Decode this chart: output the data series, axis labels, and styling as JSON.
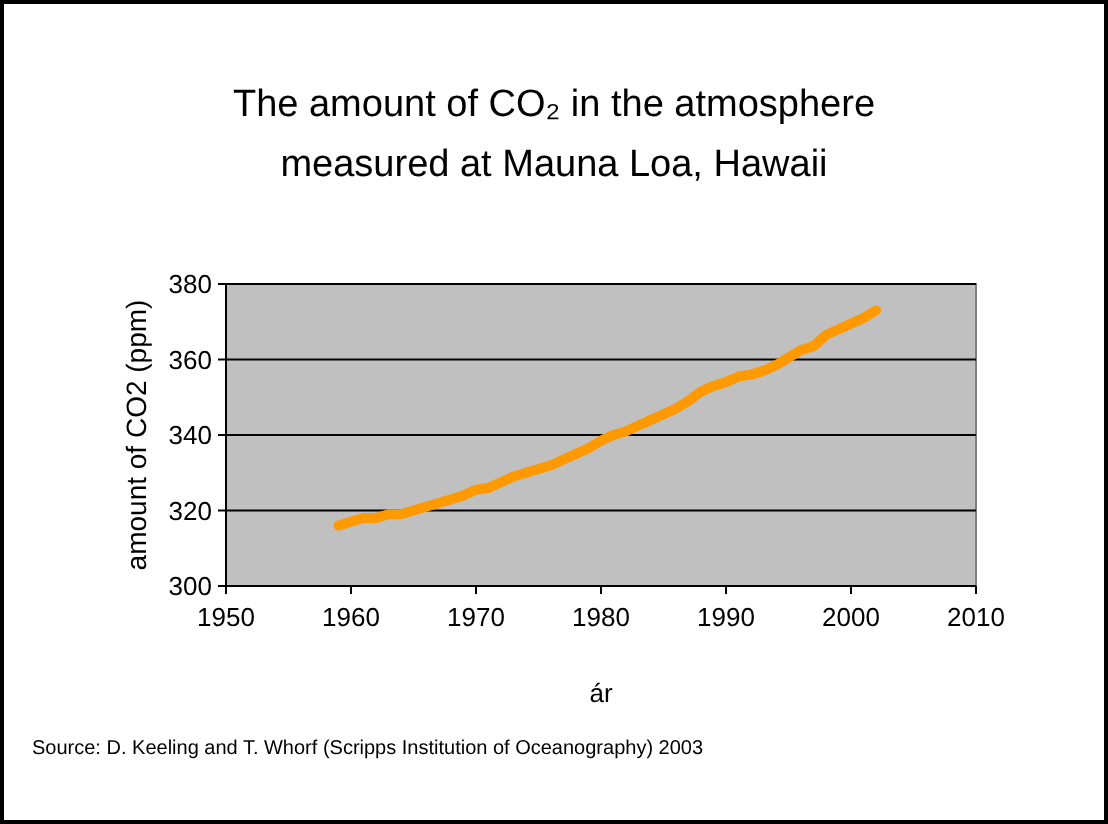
{
  "chart_data": {
    "type": "line",
    "title": "The amount of CO₂ in the atmosphere measured at Mauna Loa, Hawaii",
    "xlabel": "ár",
    "ylabel": "amount of CO2 (ppm)",
    "annotations": [
      "Source: D. Keeling and T. Whorf (Scripps Institution of Oceanography) 2003"
    ],
    "x": [
      1959,
      1960,
      1961,
      1962,
      1963,
      1964,
      1965,
      1966,
      1967,
      1968,
      1969,
      1970,
      1971,
      1972,
      1973,
      1974,
      1975,
      1976,
      1977,
      1978,
      1979,
      1980,
      1981,
      1982,
      1983,
      1984,
      1985,
      1986,
      1987,
      1988,
      1989,
      1990,
      1991,
      1992,
      1993,
      1994,
      1995,
      1996,
      1997,
      1998,
      1999,
      2000,
      2001,
      2002
    ],
    "series": [
      {
        "color": "#ff9900",
        "values": [
          316,
          317,
          318,
          318,
          319,
          319,
          320,
          321,
          322,
          323,
          324,
          325.5,
          326,
          327.5,
          329,
          330,
          331,
          332,
          333.5,
          335,
          336.5,
          338.5,
          340,
          341,
          342.5,
          344,
          345.5,
          347,
          349,
          351.5,
          353,
          354,
          355.5,
          356,
          357,
          358.5,
          360.5,
          362.5,
          363.5,
          366.5,
          368,
          369.5,
          371,
          373
        ]
      }
    ],
    "xlim": [
      1950,
      2010
    ],
    "xticks": [
      1950,
      1960,
      1970,
      1980,
      1990,
      2000,
      2010
    ],
    "ylim": [
      300,
      380
    ],
    "yticks": [
      300,
      320,
      340,
      360,
      380
    ],
    "grid": "y",
    "marker": "none",
    "line_style": "solid"
  }
}
